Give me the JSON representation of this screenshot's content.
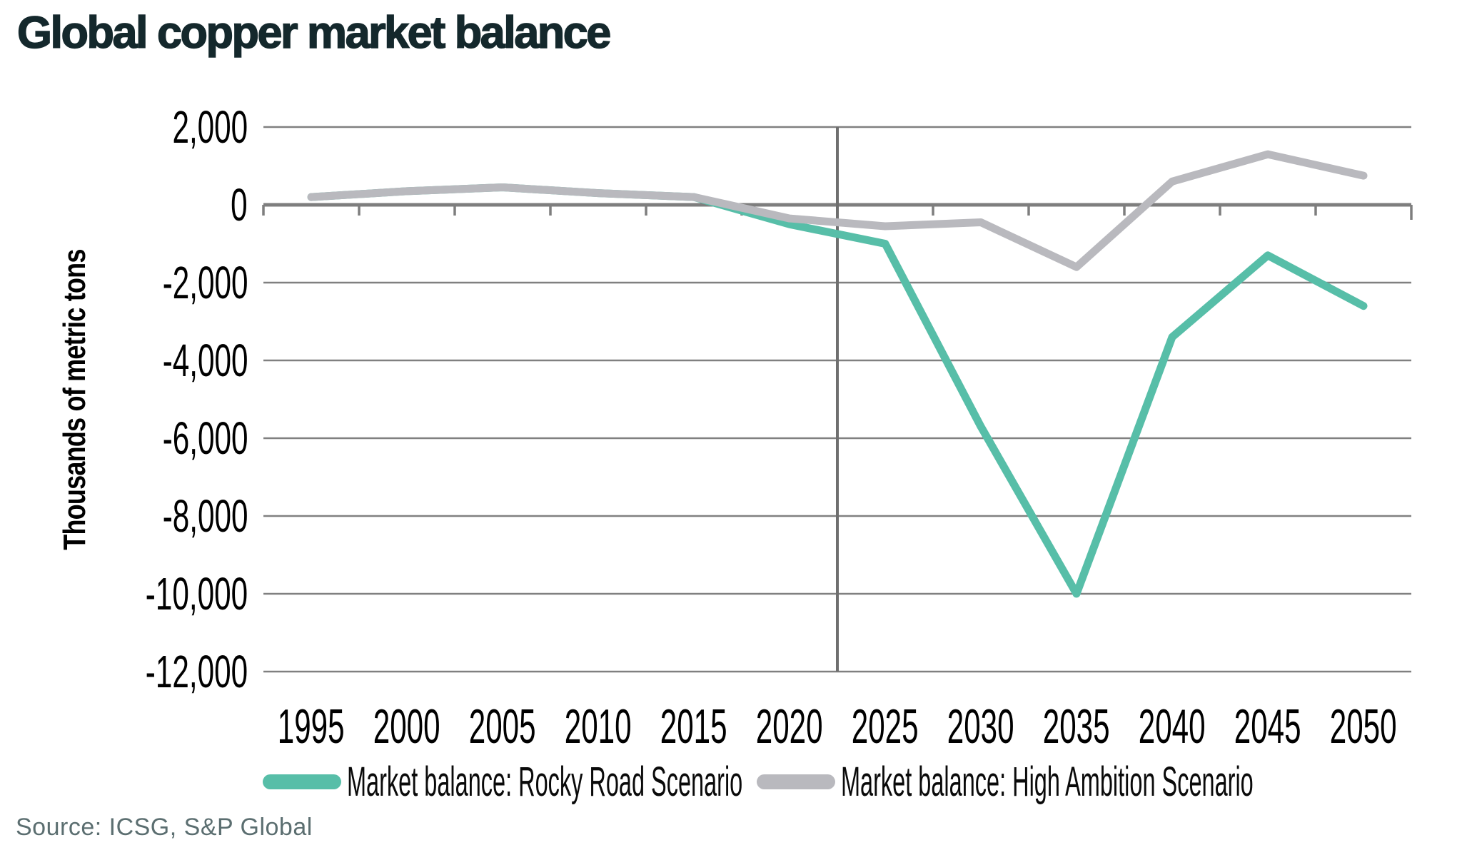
{
  "title": "Global copper market balance",
  "source": "Source: ICSG, S&P Global",
  "colors": {
    "rocky_road_teal": "#57BEA8",
    "high_ambition_gray": "#B9B9BE",
    "gridline": "#808080",
    "axis_line": "#7E7E7E",
    "forecast_divider": "#6F6F6F",
    "title_text": "#14282C",
    "source_text": "#5B6E70"
  },
  "chart_data": {
    "type": "line",
    "title": "Global copper market balance",
    "xlabel": "",
    "ylabel": "Thousands of metric tons",
    "categories": [
      "1995",
      "2000",
      "2005",
      "2010",
      "2015",
      "2020",
      "2025",
      "2030",
      "2035",
      "2040",
      "2045",
      "2050"
    ],
    "series": [
      {
        "name": "Market balance: Rocky Road Scenario",
        "color": "#57BEA8",
        "values": [
          200,
          350,
          450,
          300,
          200,
          -500,
          -1000,
          -5700,
          -10000,
          -3400,
          -1300,
          -2600
        ]
      },
      {
        "name": "Market balance: High Ambition Scenario",
        "color": "#B9B9BE",
        "values": [
          200,
          350,
          450,
          300,
          200,
          -350,
          -550,
          -450,
          -1600,
          600,
          1300,
          750
        ]
      }
    ],
    "ylim": [
      -12000,
      2000
    ],
    "ytick_step": 2000,
    "ytick_labels": [
      "2,000",
      "0",
      "-2,000",
      "-4,000",
      "-6,000",
      "-8,000",
      "-10,000",
      "-12,000"
    ],
    "grid": "horizontal",
    "legend_position": "bottom",
    "annotations": {
      "vertical_divider_between_categories": [
        "2020",
        "2025"
      ]
    }
  }
}
